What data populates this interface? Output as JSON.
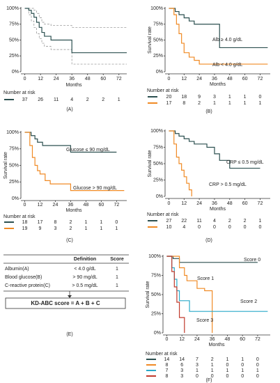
{
  "chart_data": [
    {
      "type": "km",
      "panel_label": "(A)",
      "x_label": "Months",
      "risk_title": "Number at risk",
      "xlim": [
        -3,
        78
      ],
      "xticks": [
        0,
        12,
        24,
        36,
        48,
        60,
        72
      ],
      "ylim": [
        0,
        100
      ],
      "yticks": [
        {
          "value": 0,
          "label": "0%"
        },
        {
          "value": 25,
          "label": "25%"
        },
        {
          "value": 50,
          "label": "50%"
        },
        {
          "value": 75,
          "label": "75%"
        },
        {
          "value": 100,
          "label": "100%"
        }
      ],
      "color": "#2b4f4f",
      "x": [
        0,
        3,
        5,
        7,
        9,
        11,
        13,
        15,
        20,
        36,
        78
      ],
      "values": [
        100,
        97,
        92,
        86,
        78,
        70,
        62,
        56,
        50,
        30,
        30
      ],
      "lower": [
        100,
        90,
        80,
        70,
        60,
        52,
        45,
        40,
        35,
        12,
        12
      ],
      "upper": [
        100,
        100,
        100,
        97,
        92,
        85,
        78,
        75,
        73,
        70,
        70
      ],
      "at_risk": [
        37,
        26,
        11,
        4,
        2,
        2,
        1
      ]
    },
    {
      "type": "km",
      "panel_label": "(B)",
      "x_label": "Months",
      "y_label": "Survival rate",
      "risk_title": "Number at risk",
      "xlim": [
        -3,
        80
      ],
      "xticks": [
        0,
        12,
        24,
        36,
        48,
        60,
        72
      ],
      "ylim": [
        0,
        100
      ],
      "yticks": [
        {
          "value": 0,
          "label": "0%"
        },
        {
          "value": 25,
          "label": "25%"
        },
        {
          "value": 50,
          "label": "50%"
        },
        {
          "value": 75,
          "label": "75%"
        },
        {
          "value": 100,
          "label": "100%"
        }
      ],
      "series": [
        {
          "name": "Alb ≥ 4.0 g/dL",
          "color": "#2b4f4f",
          "x": [
            0,
            5,
            8,
            12,
            16,
            20,
            40,
            78
          ],
          "values": [
            100,
            95,
            90,
            85,
            80,
            75,
            38,
            38
          ],
          "at_risk": [
            20,
            18,
            9,
            3,
            1,
            1,
            0
          ]
        },
        {
          "name": "Alb < 4.0 g/dL",
          "color": "#f08a24",
          "x": [
            0,
            4,
            6,
            8,
            10,
            12,
            16,
            20,
            24,
            78
          ],
          "values": [
            100,
            90,
            75,
            60,
            45,
            30,
            23,
            18,
            12,
            12
          ],
          "at_risk": [
            17,
            8,
            2,
            1,
            1,
            1,
            1
          ]
        }
      ]
    },
    {
      "type": "km",
      "panel_label": "(C)",
      "x_label": "Months",
      "y_label": "Survival rate",
      "risk_title": "Number at risk",
      "xlim": [
        -3,
        80
      ],
      "xticks": [
        0,
        12,
        24,
        36,
        48,
        60,
        72
      ],
      "ylim": [
        0,
        100
      ],
      "yticks": [
        {
          "value": 0,
          "label": "0%"
        },
        {
          "value": 25,
          "label": "25%"
        },
        {
          "value": 50,
          "label": "50%"
        },
        {
          "value": 75,
          "label": "75%"
        },
        {
          "value": 100,
          "label": "100%"
        }
      ],
      "series": [
        {
          "name": "Glucose ≤ 90 mg/dL",
          "color": "#2b4f4f",
          "x": [
            0,
            5,
            8,
            10,
            14,
            36,
            72
          ],
          "values": [
            100,
            95,
            90,
            85,
            80,
            70,
            70
          ],
          "at_risk": [
            18,
            17,
            8,
            2,
            1,
            1,
            0
          ]
        },
        {
          "name": "Glucose > 90 mg/dL",
          "color": "#f08a24",
          "x": [
            0,
            4,
            6,
            8,
            10,
            12,
            16,
            20,
            36,
            78
          ],
          "values": [
            100,
            80,
            62,
            50,
            42,
            37,
            27,
            22,
            12,
            12
          ],
          "at_risk": [
            19,
            9,
            3,
            2,
            1,
            1,
            1
          ]
        }
      ]
    },
    {
      "type": "km",
      "panel_label": "(D)",
      "x_label": "Months",
      "y_label": "Survival rate",
      "risk_title": "Number at risk",
      "xlim": [
        -3,
        80
      ],
      "xticks": [
        0,
        12,
        24,
        36,
        48,
        60,
        72
      ],
      "ylim": [
        0,
        100
      ],
      "yticks": [
        {
          "value": 0,
          "label": "0%"
        },
        {
          "value": 25,
          "label": "25%"
        },
        {
          "value": 50,
          "label": "50%"
        },
        {
          "value": 75,
          "label": "75%"
        },
        {
          "value": 100,
          "label": "100%"
        }
      ],
      "series": [
        {
          "name": "CRP ≤ 0.5 mg/dL",
          "color": "#2b4f4f",
          "x": [
            0,
            5,
            8,
            12,
            16,
            20,
            30,
            36,
            40,
            48,
            72
          ],
          "values": [
            100,
            96,
            92,
            88,
            84,
            80,
            75,
            65,
            55,
            43,
            43
          ],
          "at_risk": [
            27,
            22,
            11,
            4,
            2,
            2,
            1
          ]
        },
        {
          "name": "CRP > 0.5 mg/dL",
          "color": "#f08a24",
          "x": [
            0,
            4,
            6,
            8,
            10,
            12,
            14,
            16,
            18
          ],
          "values": [
            100,
            80,
            60,
            50,
            40,
            30,
            20,
            10,
            0
          ],
          "at_risk": [
            10,
            4,
            0,
            0,
            0,
            0,
            0
          ]
        }
      ]
    },
    {
      "type": "km",
      "panel_label": "(F)",
      "x_label": "Months",
      "y_label": "Survival rate",
      "risk_title": "Number at risk",
      "xlim": [
        -3,
        82
      ],
      "xticks": [
        0,
        12,
        24,
        36,
        48,
        60,
        72
      ],
      "ylim": [
        0,
        100
      ],
      "yticks": [
        {
          "value": 0,
          "label": "0%"
        },
        {
          "value": 25,
          "label": "25%"
        },
        {
          "value": 50,
          "label": "50%"
        },
        {
          "value": 75,
          "label": "75%"
        },
        {
          "value": 100,
          "label": "100%"
        }
      ],
      "series": [
        {
          "name": "Score 0",
          "color": "#2b4f4f",
          "x": [
            0,
            5,
            10,
            72
          ],
          "values": [
            100,
            97,
            92,
            92
          ],
          "at_risk": [
            14,
            14,
            7,
            2,
            1,
            1,
            0
          ]
        },
        {
          "name": "Score 1",
          "color": "#f08a24",
          "x": [
            0,
            10,
            14,
            16,
            24,
            30,
            36
          ],
          "values": [
            100,
            85,
            75,
            68,
            58,
            55,
            0
          ],
          "at_risk": [
            8,
            6,
            3,
            1,
            0,
            0,
            0
          ]
        },
        {
          "name": "Score 2",
          "color": "#29a9c9",
          "x": [
            0,
            4,
            6,
            8,
            10,
            18,
            80
          ],
          "values": [
            100,
            85,
            70,
            55,
            42,
            28,
            28
          ],
          "at_risk": [
            7,
            3,
            1,
            1,
            1,
            1,
            1
          ]
        },
        {
          "name": "Score 3",
          "color": "#c0392b",
          "x": [
            0,
            4,
            6,
            8,
            10,
            14
          ],
          "values": [
            100,
            80,
            60,
            40,
            20,
            0
          ],
          "at_risk": [
            8,
            3,
            0,
            0,
            0,
            0,
            0
          ]
        }
      ]
    }
  ],
  "table": {
    "panel_label": "(E)",
    "header": [
      "Definition",
      "Score"
    ],
    "rows": [
      [
        "Albumin(A)",
        "< 4.0 g/dL",
        "1"
      ],
      [
        "Blood glucose(B)",
        "> 90 mg/dL",
        "1"
      ],
      [
        "C-reactive protein(C)",
        "> 0.5 mg/dL",
        "1"
      ]
    ],
    "formula": "KD-ABC score = A + B + C"
  }
}
